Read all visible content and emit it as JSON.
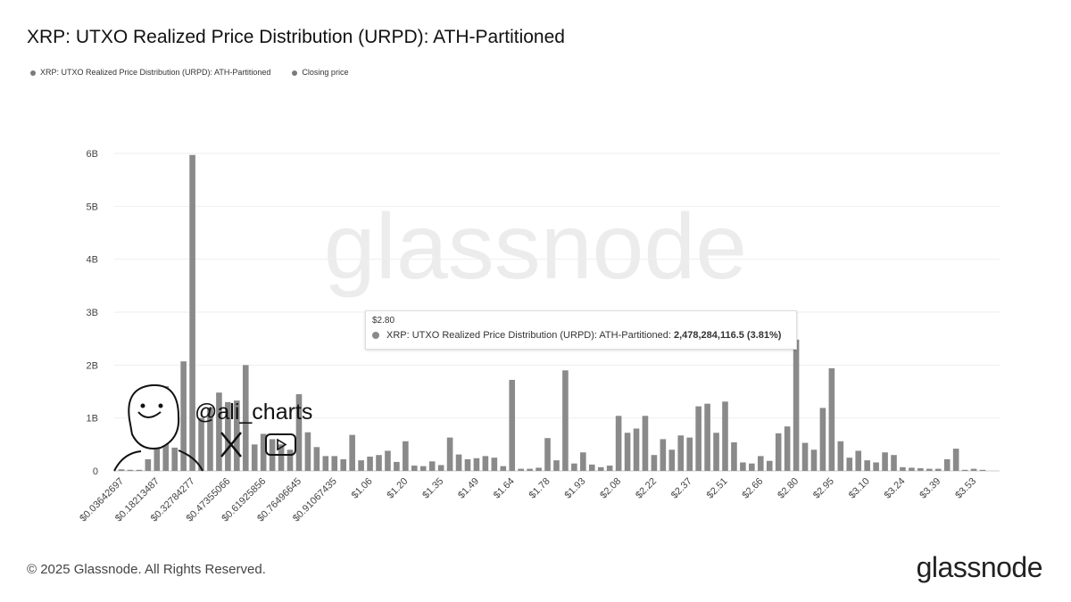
{
  "chart_data": {
    "type": "bar",
    "title": "XRP: UTXO Realized Price Distribution (URPD): ATH-Partitioned",
    "legend": [
      "XRP: UTXO Realized Price Distribution (URPD): ATH-Partitioned",
      "Closing price"
    ],
    "legend_placement": "top-left",
    "bin_width": 0.03642697,
    "tick_labels": [
      "$0.03642697",
      "$0.18213487",
      "$0.32784277",
      "$0.47355066",
      "$0.61925856",
      "$0.76496645",
      "$0.91067435",
      "$1.06",
      "$1.20",
      "$1.35",
      "$1.49",
      "$1.64",
      "$1.78",
      "$1.93",
      "$2.08",
      "$2.22",
      "$2.37",
      "$2.51",
      "$2.66",
      "$2.80",
      "$2.95",
      "$3.10",
      "$3.24",
      "$3.39",
      "$3.53"
    ],
    "tick_every": 4,
    "values_billions": [
      0.03,
      0.02,
      0.02,
      0.22,
      0.5,
      1.6,
      0.44,
      2.07,
      5.97,
      1.0,
      1.2,
      1.48,
      1.3,
      1.33,
      2.0,
      0.5,
      0.7,
      0.6,
      0.5,
      0.4,
      1.45,
      0.73,
      0.45,
      0.28,
      0.28,
      0.22,
      0.68,
      0.2,
      0.27,
      0.3,
      0.38,
      0.17,
      0.56,
      0.1,
      0.09,
      0.18,
      0.11,
      0.63,
      0.31,
      0.22,
      0.24,
      0.28,
      0.25,
      0.09,
      1.72,
      0.04,
      0.04,
      0.06,
      0.62,
      0.2,
      1.9,
      0.14,
      0.35,
      0.12,
      0.07,
      0.1,
      1.04,
      0.72,
      0.8,
      1.04,
      0.3,
      0.6,
      0.4,
      0.67,
      0.63,
      1.22,
      1.27,
      0.72,
      1.31,
      0.54,
      0.16,
      0.14,
      0.28,
      0.19,
      0.71,
      0.84,
      2.48,
      0.53,
      0.4,
      1.19,
      1.94,
      0.56,
      0.25,
      0.38,
      0.2,
      0.16,
      0.35,
      0.3,
      0.07,
      0.06,
      0.05,
      0.04,
      0.04,
      0.22,
      0.42,
      0.02,
      0.04,
      0.02
    ],
    "ylim": [
      0,
      6
    ],
    "yticks": [
      "0",
      "1B",
      "2B",
      "3B",
      "4B",
      "5B",
      "6B"
    ],
    "grid": true,
    "bar_color": "#8a8a8a",
    "tooltip": {
      "header": "$2.80",
      "label": "XRP: UTXO Realized Price Distribution (URPD): ATH-Partitioned: ",
      "value": "2,478,284,116.5 (3.81%)"
    }
  },
  "watermark": "glassnode",
  "handle": "@ali_charts",
  "footer": "© 2025 Glassnode. All Rights Reserved.",
  "logo": "glassnode"
}
